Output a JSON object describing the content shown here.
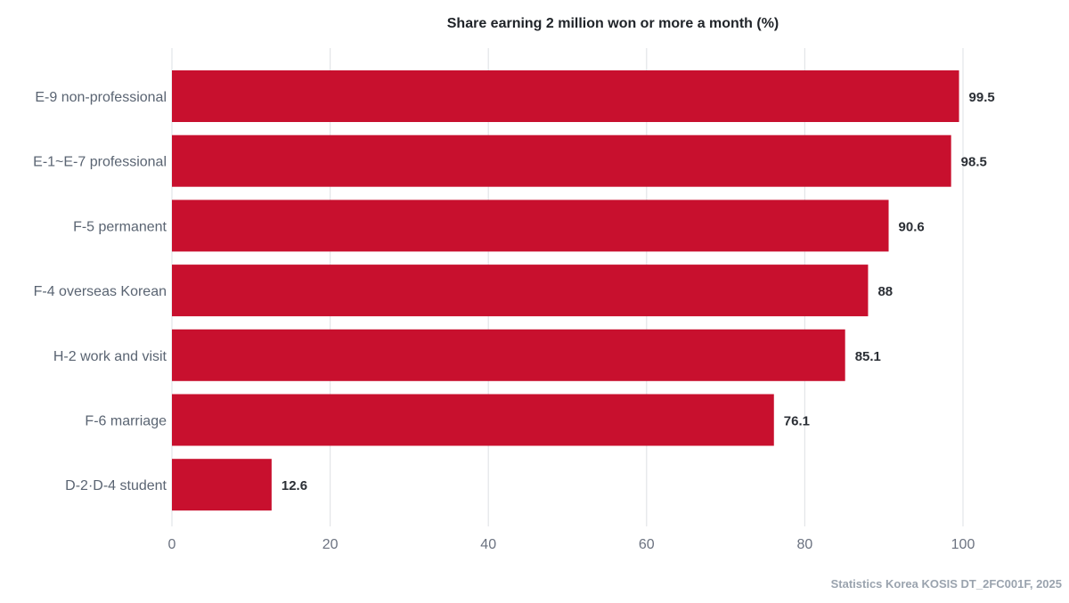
{
  "chart_data": {
    "type": "bar",
    "orientation": "horizontal",
    "title": "Share earning 2 million won or more a month (%)",
    "categories": [
      "E-9 non-professional",
      "E-1~E-7 professional",
      "F-5 permanent",
      "F-4 overseas Korean",
      "H-2 work and visit",
      "F-6 marriage",
      "D-2·D-4 student"
    ],
    "values": [
      99.5,
      98.5,
      90.6,
      88,
      85.1,
      76.1,
      12.6
    ],
    "value_labels": [
      "99.5",
      "98.5",
      "90.6",
      "88",
      "85.1",
      "76.1",
      "12.6"
    ],
    "xlabel": "",
    "ylabel": "",
    "xlim": [
      0,
      100
    ],
    "xticks": [
      0,
      20,
      40,
      60,
      80,
      100
    ],
    "grid": true,
    "bar_color": "#c8102e",
    "source": "Statistics Korea KOSIS DT_2FC001F, 2025"
  }
}
